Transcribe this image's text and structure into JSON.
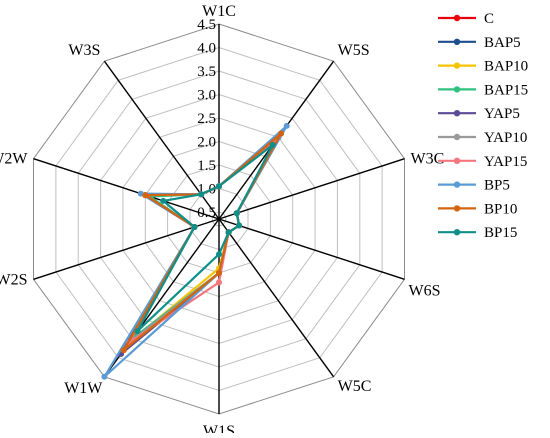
{
  "chart_data": {
    "type": "radar",
    "axes": [
      "W1C",
      "W5S",
      "W3C",
      "W6S",
      "W5C",
      "W1S",
      "W1W",
      "W2S",
      "W2W",
      "W3S"
    ],
    "rmin": 0.5,
    "rmax": 4.5,
    "ticks": [
      0.5,
      1.0,
      1.5,
      2.0,
      2.5,
      3.0,
      3.5,
      4.0,
      4.5
    ],
    "tick_labels": [
      "0.5",
      "1.0",
      "1.5",
      "2.0",
      "2.5",
      "3.0",
      "3.5",
      "4.0",
      "4.5"
    ],
    "grid": true,
    "legend_position": "right",
    "series": [
      {
        "name": "C",
        "color": "#e8000b",
        "values": [
          1.05,
          2.5,
          0.75,
          0.8,
          0.7,
          1.5,
          3.8,
          0.9,
          2.0,
          1.0
        ]
      },
      {
        "name": "BAP5",
        "color": "#1f4e8c",
        "values": [
          1.05,
          2.5,
          0.75,
          0.8,
          0.7,
          1.5,
          3.9,
          0.9,
          2.0,
          1.0
        ]
      },
      {
        "name": "BAP10",
        "color": "#f5c400",
        "values": [
          1.05,
          2.4,
          0.75,
          0.8,
          0.7,
          1.4,
          3.6,
          0.9,
          2.0,
          1.0
        ]
      },
      {
        "name": "BAP15",
        "color": "#2ec27e",
        "values": [
          1.05,
          2.5,
          0.75,
          0.8,
          0.7,
          1.5,
          3.5,
          0.9,
          1.9,
          1.0
        ]
      },
      {
        "name": "YAP5",
        "color": "#5b4a96",
        "values": [
          1.05,
          2.5,
          0.75,
          0.8,
          0.7,
          1.5,
          3.9,
          0.9,
          2.0,
          1.0
        ]
      },
      {
        "name": "YAP10",
        "color": "#999999",
        "values": [
          1.05,
          2.6,
          0.75,
          0.8,
          0.7,
          1.5,
          3.6,
          0.9,
          2.0,
          1.0
        ]
      },
      {
        "name": "YAP15",
        "color": "#f4777f",
        "values": [
          1.05,
          2.5,
          0.75,
          0.8,
          0.7,
          1.7,
          3.6,
          0.9,
          2.0,
          1.0
        ]
      },
      {
        "name": "BP5",
        "color": "#5b9bd5",
        "values": [
          1.05,
          2.8,
          0.75,
          0.8,
          0.7,
          1.5,
          4.5,
          0.9,
          2.1,
          1.0
        ]
      },
      {
        "name": "BP10",
        "color": "#d4640e",
        "values": [
          1.05,
          2.6,
          0.75,
          0.8,
          0.7,
          1.5,
          3.8,
          0.9,
          2.0,
          1.0
        ]
      },
      {
        "name": "BP15",
        "color": "#0f8f89",
        "values": [
          1.05,
          2.3,
          0.75,
          0.8,
          0.7,
          1.1,
          3.3,
          0.9,
          1.6,
          1.0
        ]
      }
    ]
  }
}
